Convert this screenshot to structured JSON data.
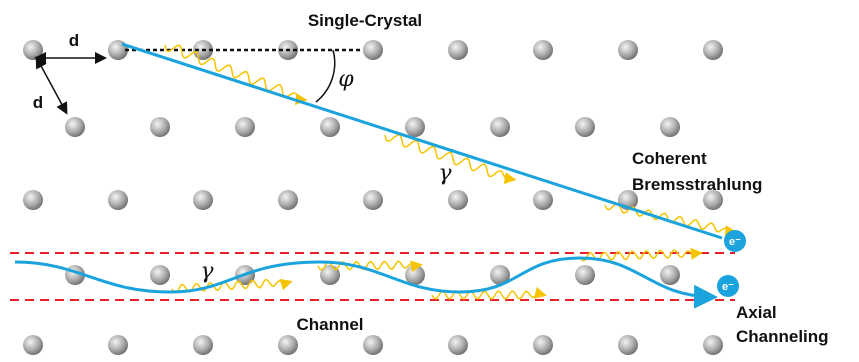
{
  "labels": {
    "title": "Single-Crystal",
    "d_horizontal": "d",
    "d_diagonal": "d",
    "angle": "φ",
    "photon_upper": "γ",
    "photon_lower": "γ",
    "coherent_line1": "Coherent",
    "coherent_line2": "Bremsstrahlung",
    "electron_upper": "e⁻",
    "electron_lower": "e⁻",
    "channel": "Channel",
    "axial_line1": "Axial",
    "axial_line2": "Channeling"
  }
}
